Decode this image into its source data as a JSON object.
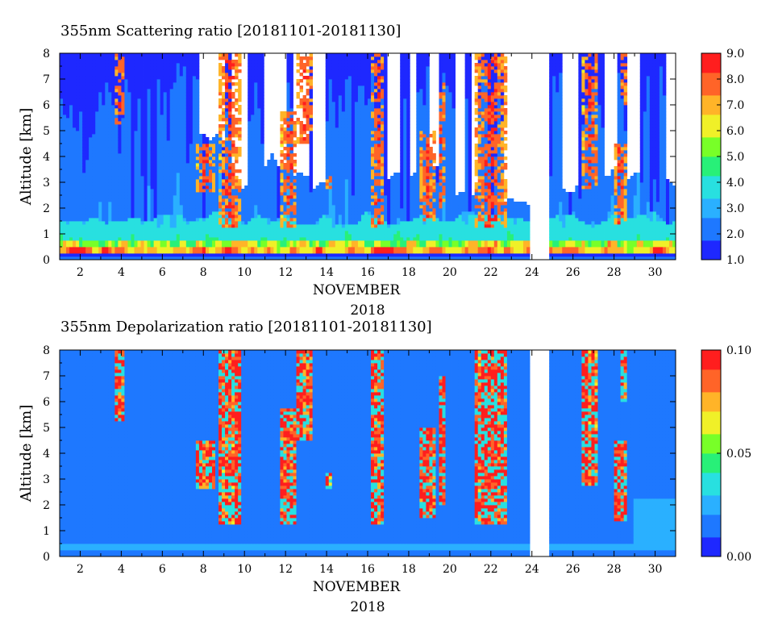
{
  "chart_data": [
    {
      "type": "heatmap",
      "title": "355nm Scattering ratio [20181101-20181130]",
      "ylabel": "Altitude [km]",
      "xlabel": "NOVEMBER",
      "xlabel2": "2018",
      "x_ticks": [
        "2",
        "4",
        "6",
        "8",
        "10",
        "12",
        "14",
        "16",
        "18",
        "20",
        "22",
        "24",
        "26",
        "28",
        "30"
      ],
      "y_ticks": [
        "0",
        "1",
        "2",
        "3",
        "4",
        "5",
        "6",
        "7",
        "8"
      ],
      "xlim": [
        1,
        31
      ],
      "ylim": [
        0,
        8
      ],
      "colorbar": {
        "range": [
          1.0,
          9.0
        ],
        "ticks": [
          "1.0",
          "2.0",
          "3.0",
          "4.0",
          "5.0",
          "6.0",
          "7.0",
          "8.0",
          "9.0"
        ]
      },
      "data_gaps_days": [
        [
          23.9,
          24.8
        ]
      ],
      "palette": [
        "#1e28ff",
        "#1e78ff",
        "#2ab0ff",
        "#28e0e0",
        "#28f078",
        "#78ff28",
        "#f0f028",
        "#ffb428",
        "#ff6428",
        "#ff1e1e"
      ]
    },
    {
      "type": "heatmap",
      "title": "355nm Depolarization ratio [20181101-20181130]",
      "ylabel": "Altitude [km]",
      "xlabel": "NOVEMBER",
      "xlabel2": "2018",
      "x_ticks": [
        "2",
        "4",
        "6",
        "8",
        "10",
        "12",
        "14",
        "16",
        "18",
        "20",
        "22",
        "24",
        "26",
        "28",
        "30"
      ],
      "y_ticks": [
        "0",
        "1",
        "2",
        "3",
        "4",
        "5",
        "6",
        "7",
        "8"
      ],
      "xlim": [
        1,
        31
      ],
      "ylim": [
        0,
        8
      ],
      "colorbar": {
        "range": [
          0.0,
          0.1
        ],
        "ticks": [
          "0.00",
          "0.05",
          "0.10"
        ]
      },
      "data_gaps_days": [
        [
          23.9,
          24.8
        ]
      ],
      "palette": [
        "#1e28ff",
        "#1e78ff",
        "#2ab0ff",
        "#28e0e0",
        "#28f078",
        "#78ff28",
        "#f0f028",
        "#ffb428",
        "#ff6428",
        "#ff1e1e"
      ]
    }
  ]
}
